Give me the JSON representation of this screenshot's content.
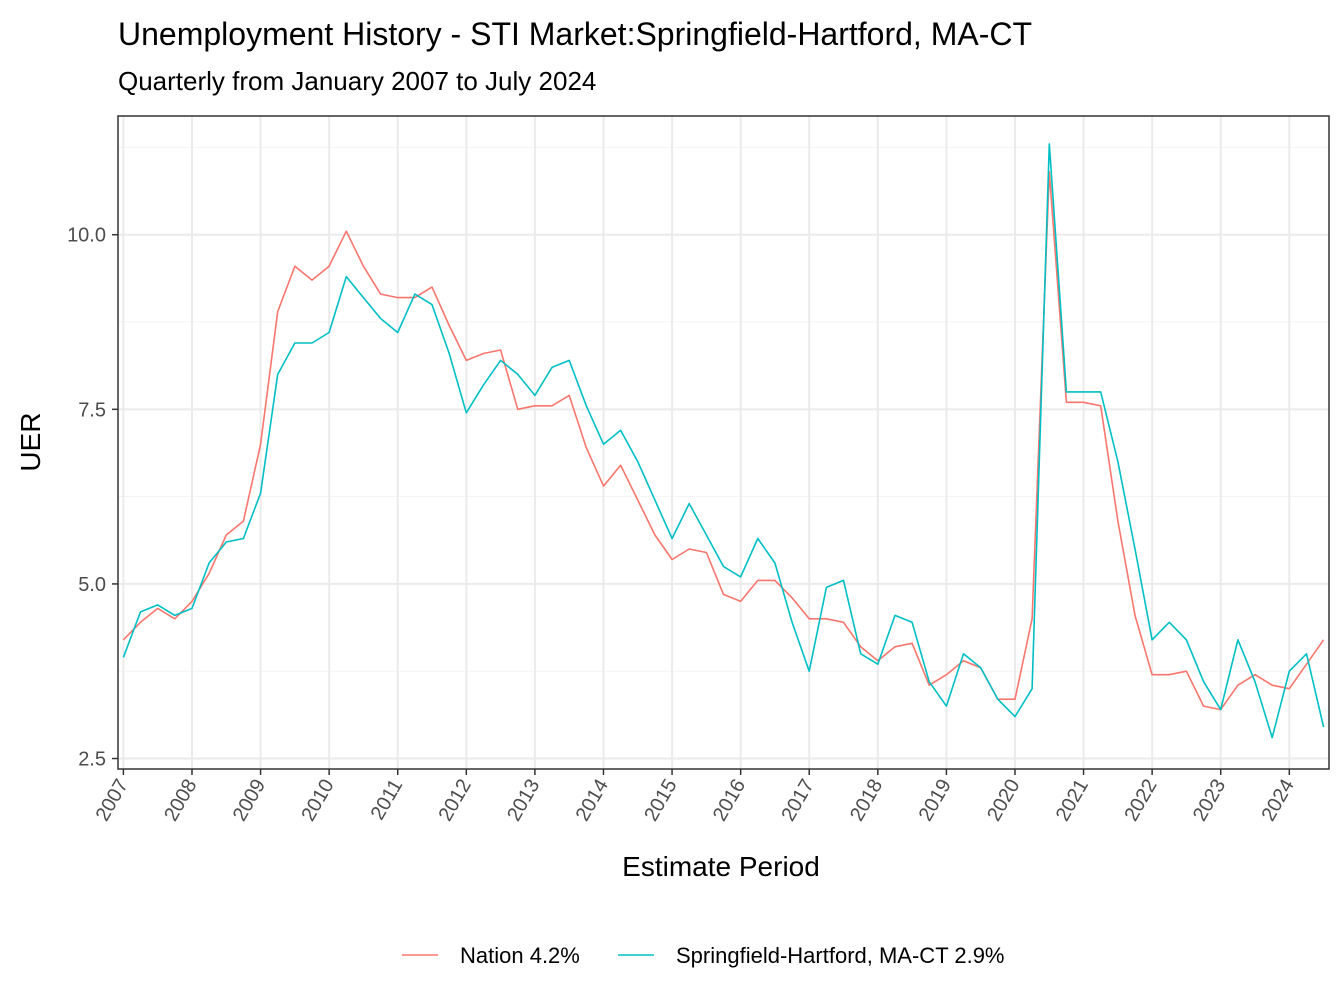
{
  "chart_data": {
    "type": "line",
    "title": "Unemployment History - STI Market:Springfield-Hartford, MA-CT",
    "subtitle": "Quarterly from January 2007 to July 2024",
    "xlabel": "Estimate Period",
    "ylabel": "UER",
    "xlim": [
      "2007-01",
      "2024-07"
    ],
    "ylim": [
      2.5,
      11.5
    ],
    "y_ticks": [
      "2.5",
      "5.0",
      "7.5",
      "10.0"
    ],
    "x_ticks": [
      "2007",
      "2008",
      "2009",
      "2010",
      "2011",
      "2012",
      "2013",
      "2014",
      "2015",
      "2016",
      "2017",
      "2018",
      "2019",
      "2020",
      "2021",
      "2022",
      "2023",
      "2024"
    ],
    "grid": true,
    "legend_position": "bottom",
    "x": [
      "2007-01",
      "2007-04",
      "2007-07",
      "2007-10",
      "2008-01",
      "2008-04",
      "2008-07",
      "2008-10",
      "2009-01",
      "2009-04",
      "2009-07",
      "2009-10",
      "2010-01",
      "2010-04",
      "2010-07",
      "2010-10",
      "2011-01",
      "2011-04",
      "2011-07",
      "2011-10",
      "2012-01",
      "2012-04",
      "2012-07",
      "2012-10",
      "2013-01",
      "2013-04",
      "2013-07",
      "2013-10",
      "2014-01",
      "2014-04",
      "2014-07",
      "2014-10",
      "2015-01",
      "2015-04",
      "2015-07",
      "2015-10",
      "2016-01",
      "2016-04",
      "2016-07",
      "2016-10",
      "2017-01",
      "2017-04",
      "2017-07",
      "2017-10",
      "2018-01",
      "2018-04",
      "2018-07",
      "2018-10",
      "2019-01",
      "2019-04",
      "2019-07",
      "2019-10",
      "2020-01",
      "2020-04",
      "2020-07",
      "2020-10",
      "2021-01",
      "2021-04",
      "2021-07",
      "2021-10",
      "2022-01",
      "2022-04",
      "2022-07",
      "2022-10",
      "2023-01",
      "2023-04",
      "2023-07",
      "2023-10",
      "2024-01",
      "2024-04",
      "2024-07"
    ],
    "series": [
      {
        "name": "Nation 4.2%",
        "color": "#F8766D",
        "values": [
          4.2,
          4.45,
          4.65,
          4.5,
          4.75,
          5.15,
          5.7,
          5.9,
          7.0,
          8.9,
          9.55,
          9.35,
          9.55,
          10.05,
          9.55,
          9.15,
          9.1,
          9.1,
          9.25,
          8.7,
          8.2,
          8.3,
          8.35,
          7.5,
          7.55,
          7.55,
          7.7,
          6.95,
          6.4,
          6.7,
          6.2,
          5.7,
          5.35,
          5.5,
          5.45,
          4.85,
          4.75,
          5.05,
          5.05,
          4.8,
          4.5,
          4.5,
          4.45,
          4.1,
          3.9,
          4.1,
          4.15,
          3.55,
          3.7,
          3.9,
          3.8,
          3.35,
          3.35,
          4.5,
          10.9,
          7.6,
          7.6,
          7.55,
          5.9,
          4.55,
          3.7,
          3.7,
          3.75,
          3.25,
          3.2,
          3.55,
          3.7,
          3.55,
          3.5,
          3.85,
          4.2
        ]
      },
      {
        "name": "Springfield-Hartford, MA-CT 2.9%",
        "color": "#00BFC4",
        "values": [
          3.95,
          4.6,
          4.7,
          4.55,
          4.65,
          5.3,
          5.6,
          5.65,
          6.3,
          8.0,
          8.45,
          8.45,
          8.6,
          9.4,
          9.1,
          8.8,
          8.6,
          9.15,
          9.0,
          8.3,
          7.45,
          7.85,
          8.2,
          8.0,
          7.7,
          8.1,
          8.2,
          7.55,
          7.0,
          7.2,
          6.75,
          6.2,
          5.65,
          6.15,
          5.7,
          5.25,
          5.1,
          5.65,
          5.3,
          4.45,
          3.75,
          4.95,
          5.05,
          4.0,
          3.85,
          4.55,
          4.45,
          3.6,
          3.25,
          4.0,
          3.8,
          3.35,
          3.1,
          3.5,
          11.3,
          7.75,
          7.75,
          7.75,
          6.75,
          5.5,
          4.2,
          4.45,
          4.2,
          3.6,
          3.2,
          4.2,
          3.6,
          2.8,
          3.75,
          4.0,
          2.95
        ]
      }
    ]
  }
}
